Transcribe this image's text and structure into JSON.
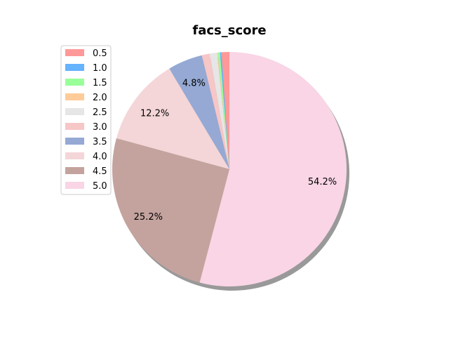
{
  "chart_data": {
    "type": "pie",
    "title": "facs_score",
    "categories": [
      "0.5",
      "1.0",
      "1.5",
      "2.0",
      "2.5",
      "3.0",
      "3.5",
      "4.0",
      "4.5",
      "5.0"
    ],
    "values": [
      1.1,
      0.2,
      0.3,
      0.1,
      1.0,
      1.1,
      4.8,
      12.2,
      25.2,
      54.2
    ],
    "colors": [
      "#ff9999",
      "#66b3ff",
      "#99ff99",
      "#ffcc99",
      "#e6e6e6",
      "#f7c6c7",
      "#95a9d4",
      "#f4d6d8",
      "#c4a39e",
      "#f9d5e5"
    ],
    "data_labels": [
      "",
      "",
      "",
      "",
      "",
      "",
      "4.8%",
      "12.2%",
      "25.2%",
      "54.2%"
    ],
    "start_angle_deg": 90,
    "direction": "counterclockwise",
    "shadow": true,
    "legend_position": "upper-left"
  }
}
